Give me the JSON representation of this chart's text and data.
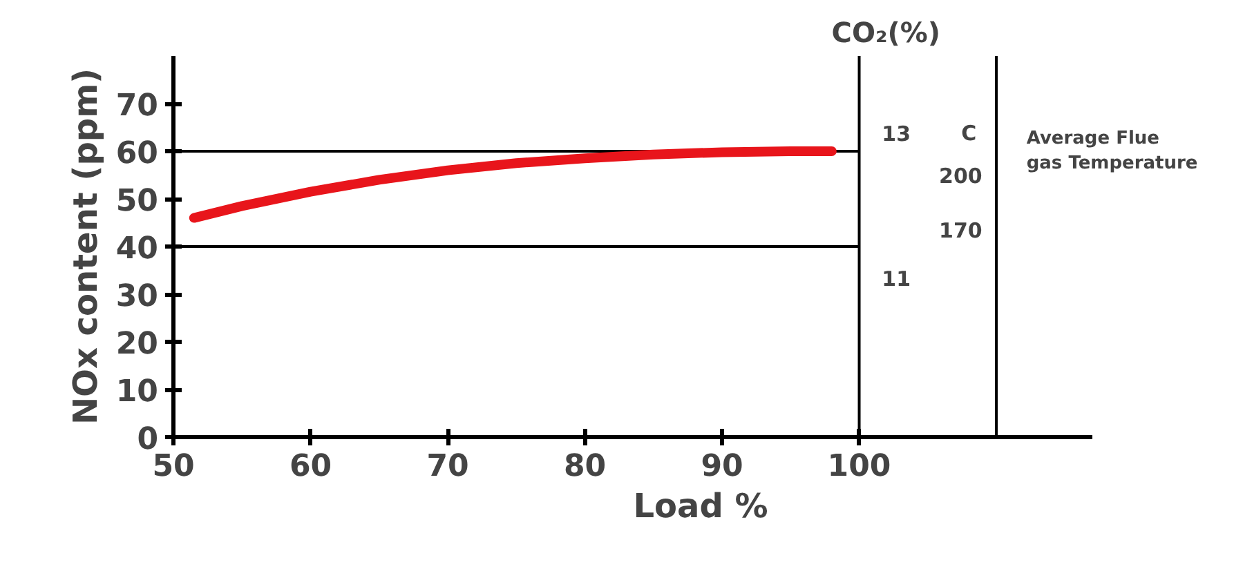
{
  "chart_data": {
    "type": "line",
    "xlabel": "Load %",
    "ylabel": "NOx content (ppm)",
    "y2label": "CO₂(%)",
    "x": [
      51.5,
      55,
      60,
      65,
      70,
      75,
      80,
      85,
      90,
      95,
      98
    ],
    "series": [
      {
        "color": "#e8151b",
        "values": [
          46,
          48.5,
          51.5,
          54,
          56,
          57.5,
          58.5,
          59.3,
          59.8,
          60,
          60
        ]
      }
    ],
    "xlim": [
      50,
      117
    ],
    "ylim": [
      0,
      80
    ],
    "xticks": [
      50,
      60,
      70,
      80,
      90,
      100
    ],
    "yticks": [
      0,
      10,
      20,
      30,
      40,
      50,
      60,
      70
    ],
    "grid": false,
    "marker": "none",
    "line_style": "solid",
    "ref_lines": [
      {
        "axis": "y",
        "value": 40,
        "color": "#000000"
      },
      {
        "axis": "y",
        "value": 60,
        "color": "#000000"
      },
      {
        "axis": "x",
        "value": 100,
        "color": "#000000"
      },
      {
        "axis": "x",
        "value": 110,
        "color": "#000000"
      }
    ],
    "annotations": [
      "13",
      "C",
      "200",
      "170",
      "11",
      "Average Flue\ngas Temperature"
    ]
  }
}
